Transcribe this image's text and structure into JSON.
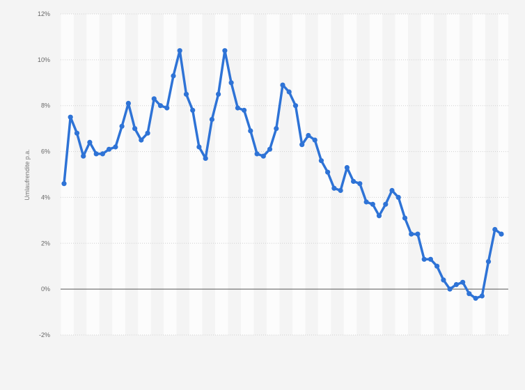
{
  "chart_data": {
    "type": "line",
    "ylabel": "Umlaufrendite p.a.",
    "ylim": [
      -2,
      12
    ],
    "y_ticks": [
      "12%",
      "10%",
      "8%",
      "6%",
      "4%",
      "2%",
      "0%",
      "-2%"
    ],
    "y_tick_values": [
      12,
      10,
      8,
      6,
      4,
      2,
      0,
      -2
    ],
    "grid": true,
    "legend": "none",
    "series": [
      {
        "values": [
          4.6,
          7.5,
          6.8,
          5.8,
          6.4,
          5.9,
          5.9,
          6.1,
          6.2,
          7.1,
          8.1,
          7.0,
          6.5,
          6.8,
          8.3,
          8.0,
          7.9,
          9.3,
          10.4,
          8.5,
          7.8,
          6.2,
          5.7,
          7.4,
          8.5,
          10.4,
          9.0,
          7.9,
          7.8,
          6.9,
          5.9,
          5.8,
          6.1,
          7.0,
          8.9,
          8.6,
          8.0,
          6.3,
          6.7,
          6.5,
          5.6,
          5.1,
          4.4,
          4.3,
          5.3,
          4.7,
          4.6,
          3.8,
          3.7,
          3.2,
          3.7,
          4.3,
          4.0,
          3.1,
          2.4,
          2.4,
          1.3,
          1.3,
          1.0,
          0.4,
          0.0,
          0.2,
          0.3,
          -0.2,
          -0.4,
          -0.3,
          1.2,
          2.6,
          2.4
        ]
      }
    ],
    "colors": {
      "line": "#2e73d6",
      "zero_line": "#555555",
      "grid": "#d0d0d0",
      "band": "#ffffff",
      "background": "#f4f4f4"
    }
  }
}
